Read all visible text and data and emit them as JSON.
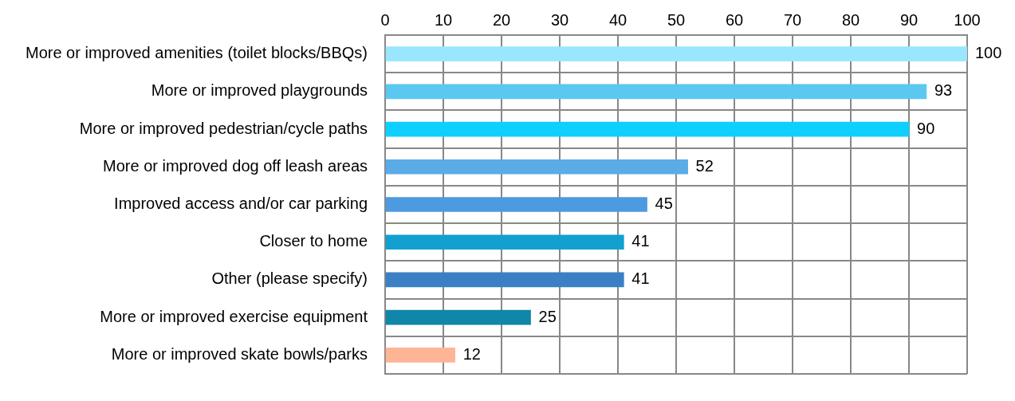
{
  "chart_data": {
    "type": "bar",
    "orientation": "horizontal",
    "categories": [
      "More or improved amenities (toilet blocks/BBQs)",
      "More or improved playgrounds",
      "More or improved pedestrian/cycle paths",
      "More or improved dog off leash areas",
      "Improved access and/or car parking",
      "Closer to home",
      "Other (please specify)",
      "More or improved exercise equipment",
      "More or improved skate bowls/parks"
    ],
    "values": [
      100,
      93,
      90,
      52,
      45,
      41,
      41,
      25,
      12
    ],
    "colors": [
      "#9ae6fd",
      "#5bc8f0",
      "#0ecfff",
      "#5aabe6",
      "#4d9ae0",
      "#12a0d0",
      "#3b80c4",
      "#1086a8",
      "#ffb496"
    ],
    "xlim": [
      0,
      100
    ],
    "xticks": [
      0,
      10,
      20,
      30,
      40,
      50,
      60,
      70,
      80,
      90,
      100
    ],
    "grid": true,
    "legend": false,
    "data_labels": true
  }
}
